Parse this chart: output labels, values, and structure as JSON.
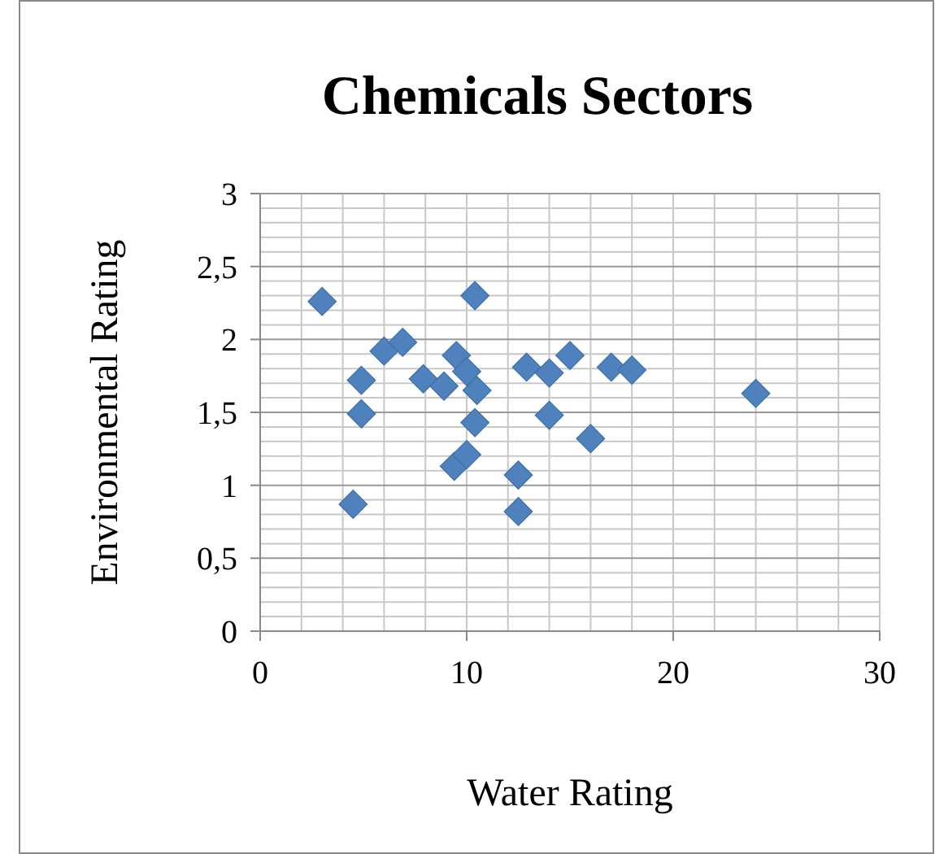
{
  "chart_data": {
    "type": "scatter",
    "title": "Chemicals Sectors",
    "xlabel": "Water Rating",
    "ylabel": "Environmental Rating",
    "marker": "diamond",
    "grid": true,
    "xlim": [
      0,
      30
    ],
    "xticks": [
      0,
      10,
      20,
      30
    ],
    "ylim": [
      0,
      3
    ],
    "yticks": [
      {
        "value": 0,
        "label": "0"
      },
      {
        "value": 0.5,
        "label": "0,5"
      },
      {
        "value": 1,
        "label": "1"
      },
      {
        "value": 1.5,
        "label": "1,5"
      },
      {
        "value": 2,
        "label": "2"
      },
      {
        "value": 2.5,
        "label": "2,5"
      },
      {
        "value": 3,
        "label": "3"
      }
    ],
    "series": [
      {
        "color": "#4f81bd",
        "x": [
          3,
          10.4,
          6,
          6.9,
          4.9,
          4.9,
          7.9,
          8.9,
          9.5,
          10,
          10.5,
          10.4,
          9.4,
          10,
          4.5,
          12.5,
          12.5,
          12.9,
          14,
          14,
          15,
          16,
          17,
          18,
          24
        ],
        "values": [
          2.26,
          2.3,
          1.92,
          1.98,
          1.72,
          1.49,
          1.73,
          1.68,
          1.89,
          1.78,
          1.65,
          1.43,
          1.13,
          1.21,
          0.87,
          1.07,
          0.82,
          1.81,
          1.77,
          1.48,
          1.89,
          1.32,
          1.81,
          1.79,
          1.63
        ]
      }
    ]
  }
}
